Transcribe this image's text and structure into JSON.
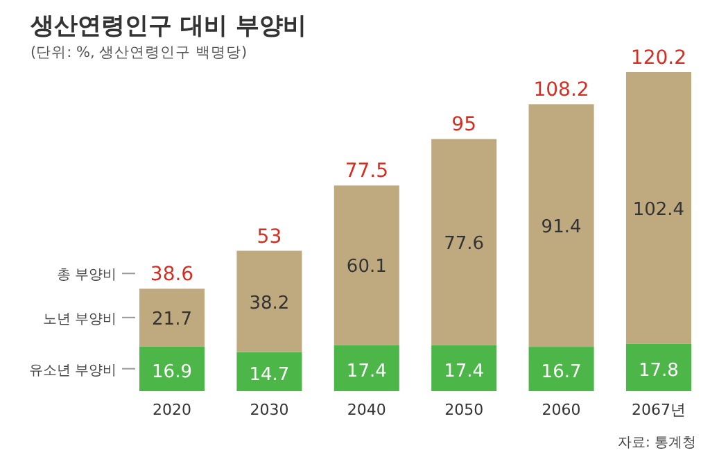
{
  "chart_data": {
    "type": "bar",
    "title": "생산연령인구 대비 부양비",
    "subtitle": "(단위: %, 생산연령인구 백명당)",
    "categories": [
      "2020",
      "2030",
      "2040",
      "2050",
      "2060",
      "2067년"
    ],
    "stacked": true,
    "data_labels": true,
    "series": [
      {
        "name": "유소년 부양비",
        "color": "#4cb648",
        "values": [
          16.9,
          14.7,
          17.4,
          17.4,
          16.7,
          17.8
        ]
      },
      {
        "name": "노년 부양비",
        "color": "#bfa97f",
        "values": [
          21.7,
          38.2,
          60.1,
          77.6,
          91.4,
          102.4
        ]
      }
    ],
    "totals": [
      "38.6",
      "53",
      "77.5",
      "95",
      "108.2",
      "120.2"
    ],
    "annotations": [
      "총 부양비",
      "자료: 통계청"
    ]
  }
}
